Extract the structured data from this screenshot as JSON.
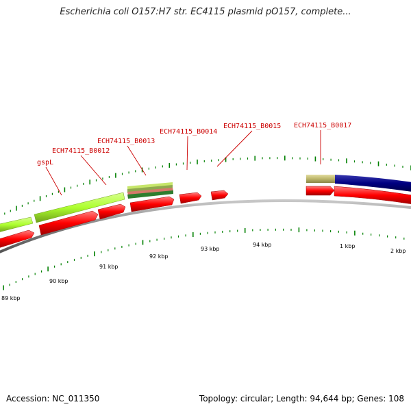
{
  "header": {
    "title": "Escherichia coli O157:H7 str. EC4115 plasmid pO157, complete..."
  },
  "footer": {
    "accession": "Accession: NC_011350",
    "summary": "Topology: circular; Length: 94,644 bp; Genes: 108"
  },
  "gene_labels": [
    {
      "name": "gene-label-gspl",
      "text": "gspL"
    },
    {
      "name": "gene-label-b0012",
      "text": "ECH74115_B0012"
    },
    {
      "name": "gene-label-b0013",
      "text": "ECH74115_B0013"
    },
    {
      "name": "gene-label-b0014",
      "text": "ECH74115_B0014"
    },
    {
      "name": "gene-label-b0015",
      "text": "ECH74115_B0015"
    },
    {
      "name": "gene-label-b0017",
      "text": "ECH74115_B0017"
    }
  ],
  "ticks": [
    {
      "name": "tick-label-89kbp",
      "text": "89 kbp"
    },
    {
      "name": "tick-label-90kbp",
      "text": "90 kbp"
    },
    {
      "name": "tick-label-91kbp",
      "text": "91 kbp"
    },
    {
      "name": "tick-label-92kbp",
      "text": "92 kbp"
    },
    {
      "name": "tick-label-93kbp",
      "text": "93 kbp"
    },
    {
      "name": "tick-label-94kbp",
      "text": "94 kbp"
    },
    {
      "name": "tick-label-1kbp",
      "text": "1 kbp"
    },
    {
      "name": "tick-label-2kbp",
      "text": "2 kbp"
    }
  ],
  "colors": {
    "forward_gene": "#adff2f",
    "reverse_gene": "#ff0000",
    "backbone": "#808080",
    "tick": "#008000",
    "label": "#cc0000",
    "khaki_feature": "#bdb76b",
    "navy_feature": "#000080"
  }
}
